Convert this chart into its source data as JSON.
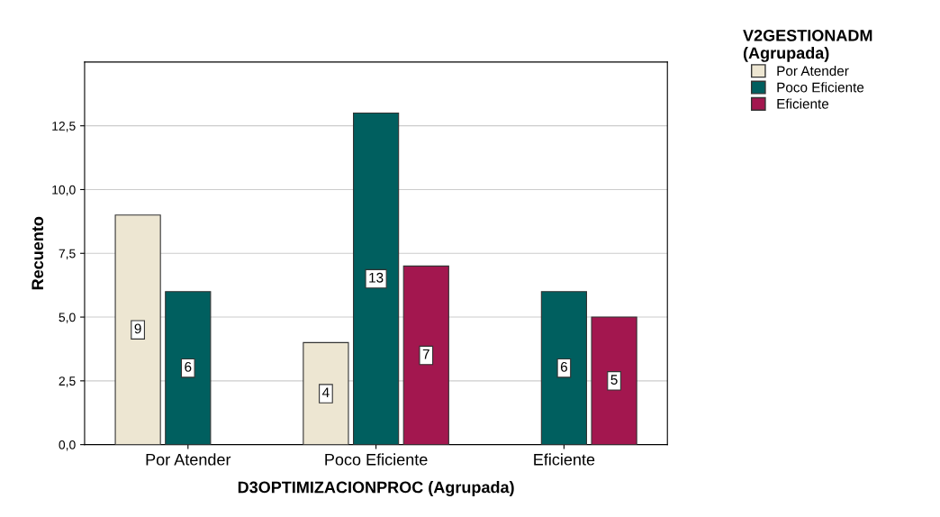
{
  "chart_data": {
    "type": "bar",
    "xlabel": "D3OPTIMIZACIONPROC (Agrupada)",
    "ylabel": "Recuento",
    "legend_title": "V2GESTIONADM\n(Agrupada)",
    "categories": [
      "Por Atender",
      "Poco Eficiente",
      "Eficiente"
    ],
    "series": [
      {
        "name": "Por Atender",
        "color": "#ede6d2",
        "values": [
          9,
          4,
          null
        ]
      },
      {
        "name": "Poco Eficiente",
        "color": "#005f5f",
        "values": [
          6,
          13,
          6
        ]
      },
      {
        "name": "Eficiente",
        "color": "#a3174f",
        "values": [
          null,
          7,
          5
        ]
      }
    ],
    "ylim": [
      0,
      15
    ],
    "yticks": [
      {
        "value": 0,
        "label": "0,0"
      },
      {
        "value": 2.5,
        "label": "2,5"
      },
      {
        "value": 5,
        "label": "5,0"
      },
      {
        "value": 7.5,
        "label": "7,5"
      },
      {
        "value": 10,
        "label": "10,0"
      },
      {
        "value": 12.5,
        "label": "12,5"
      }
    ],
    "grid": "y",
    "legend": "top right",
    "data_labels": true
  }
}
